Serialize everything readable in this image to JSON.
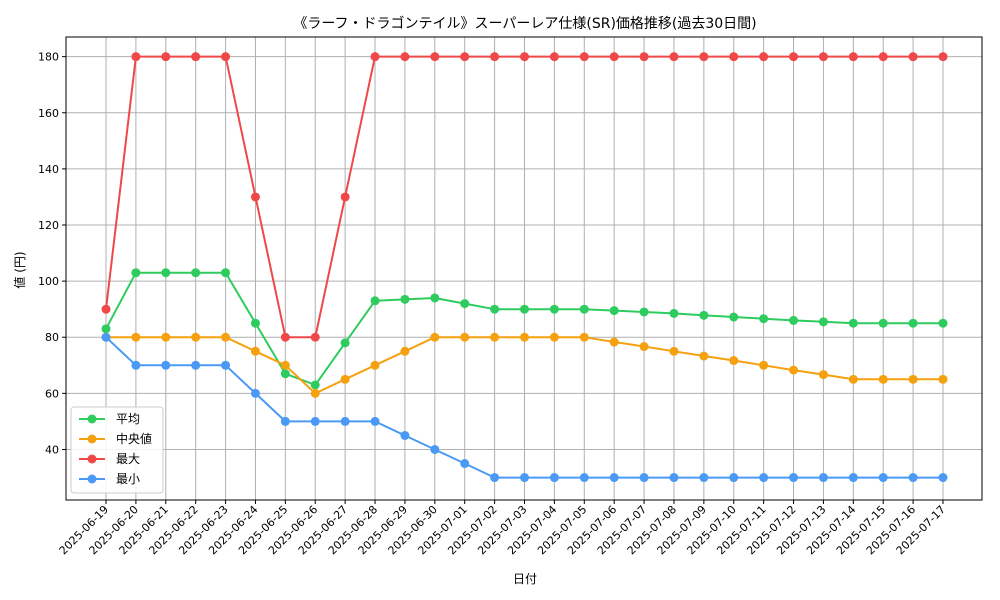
{
  "chart_data": {
    "type": "line",
    "title": "《ラーフ・ドラゴンテイル》スーパーレア仕様(SR)価格推移(過去30日間)",
    "xlabel": "日付",
    "ylabel": "値 (円)",
    "ylim": [
      22,
      187
    ],
    "yticks": [
      40,
      60,
      80,
      100,
      120,
      140,
      160,
      180
    ],
    "grid": true,
    "legend_position": "lower-left",
    "categories": [
      "2025-06-19",
      "2025-06-20",
      "2025-06-21",
      "2025-06-22",
      "2025-06-23",
      "2025-06-24",
      "2025-06-25",
      "2025-06-26",
      "2025-06-27",
      "2025-06-28",
      "2025-06-29",
      "2025-06-30",
      "2025-07-01",
      "2025-07-02",
      "2025-07-03",
      "2025-07-04",
      "2025-07-05",
      "2025-07-06",
      "2025-07-07",
      "2025-07-08",
      "2025-07-09",
      "2025-07-10",
      "2025-07-11",
      "2025-07-12",
      "2025-07-13",
      "2025-07-14",
      "2025-07-15",
      "2025-07-16",
      "2025-07-17"
    ],
    "series": [
      {
        "name": "平均",
        "color": "#2ecc5e",
        "values": [
          83,
          103,
          103,
          103,
          103,
          85,
          67,
          63,
          78,
          93,
          93.5,
          94,
          92,
          90,
          90,
          90,
          90,
          89.5,
          89,
          88.5,
          87.8,
          87.2,
          86.6,
          86,
          85.5,
          85,
          85,
          85,
          85
        ]
      },
      {
        "name": "中央値",
        "color": "#f5a10f",
        "values": [
          80,
          80,
          80,
          80,
          80,
          75,
          70,
          60,
          65,
          70,
          75,
          80,
          80,
          80,
          80,
          80,
          80,
          78.3,
          76.7,
          75,
          73.3,
          71.7,
          70,
          68.3,
          66.7,
          65,
          65,
          65,
          65
        ]
      },
      {
        "name": "最大",
        "color": "#f04848",
        "values": [
          90,
          180,
          180,
          180,
          180,
          130,
          80,
          80,
          130,
          180,
          180,
          180,
          180,
          180,
          180,
          180,
          180,
          180,
          180,
          180,
          180,
          180,
          180,
          180,
          180,
          180,
          180,
          180,
          180
        ]
      },
      {
        "name": "最小",
        "color": "#4a9af5",
        "values": [
          80,
          70,
          70,
          70,
          70,
          60,
          50,
          50,
          50,
          50,
          45,
          40,
          35,
          30,
          30,
          30,
          30,
          30,
          30,
          30,
          30,
          30,
          30,
          30,
          30,
          30,
          30,
          30,
          30
        ]
      }
    ]
  }
}
